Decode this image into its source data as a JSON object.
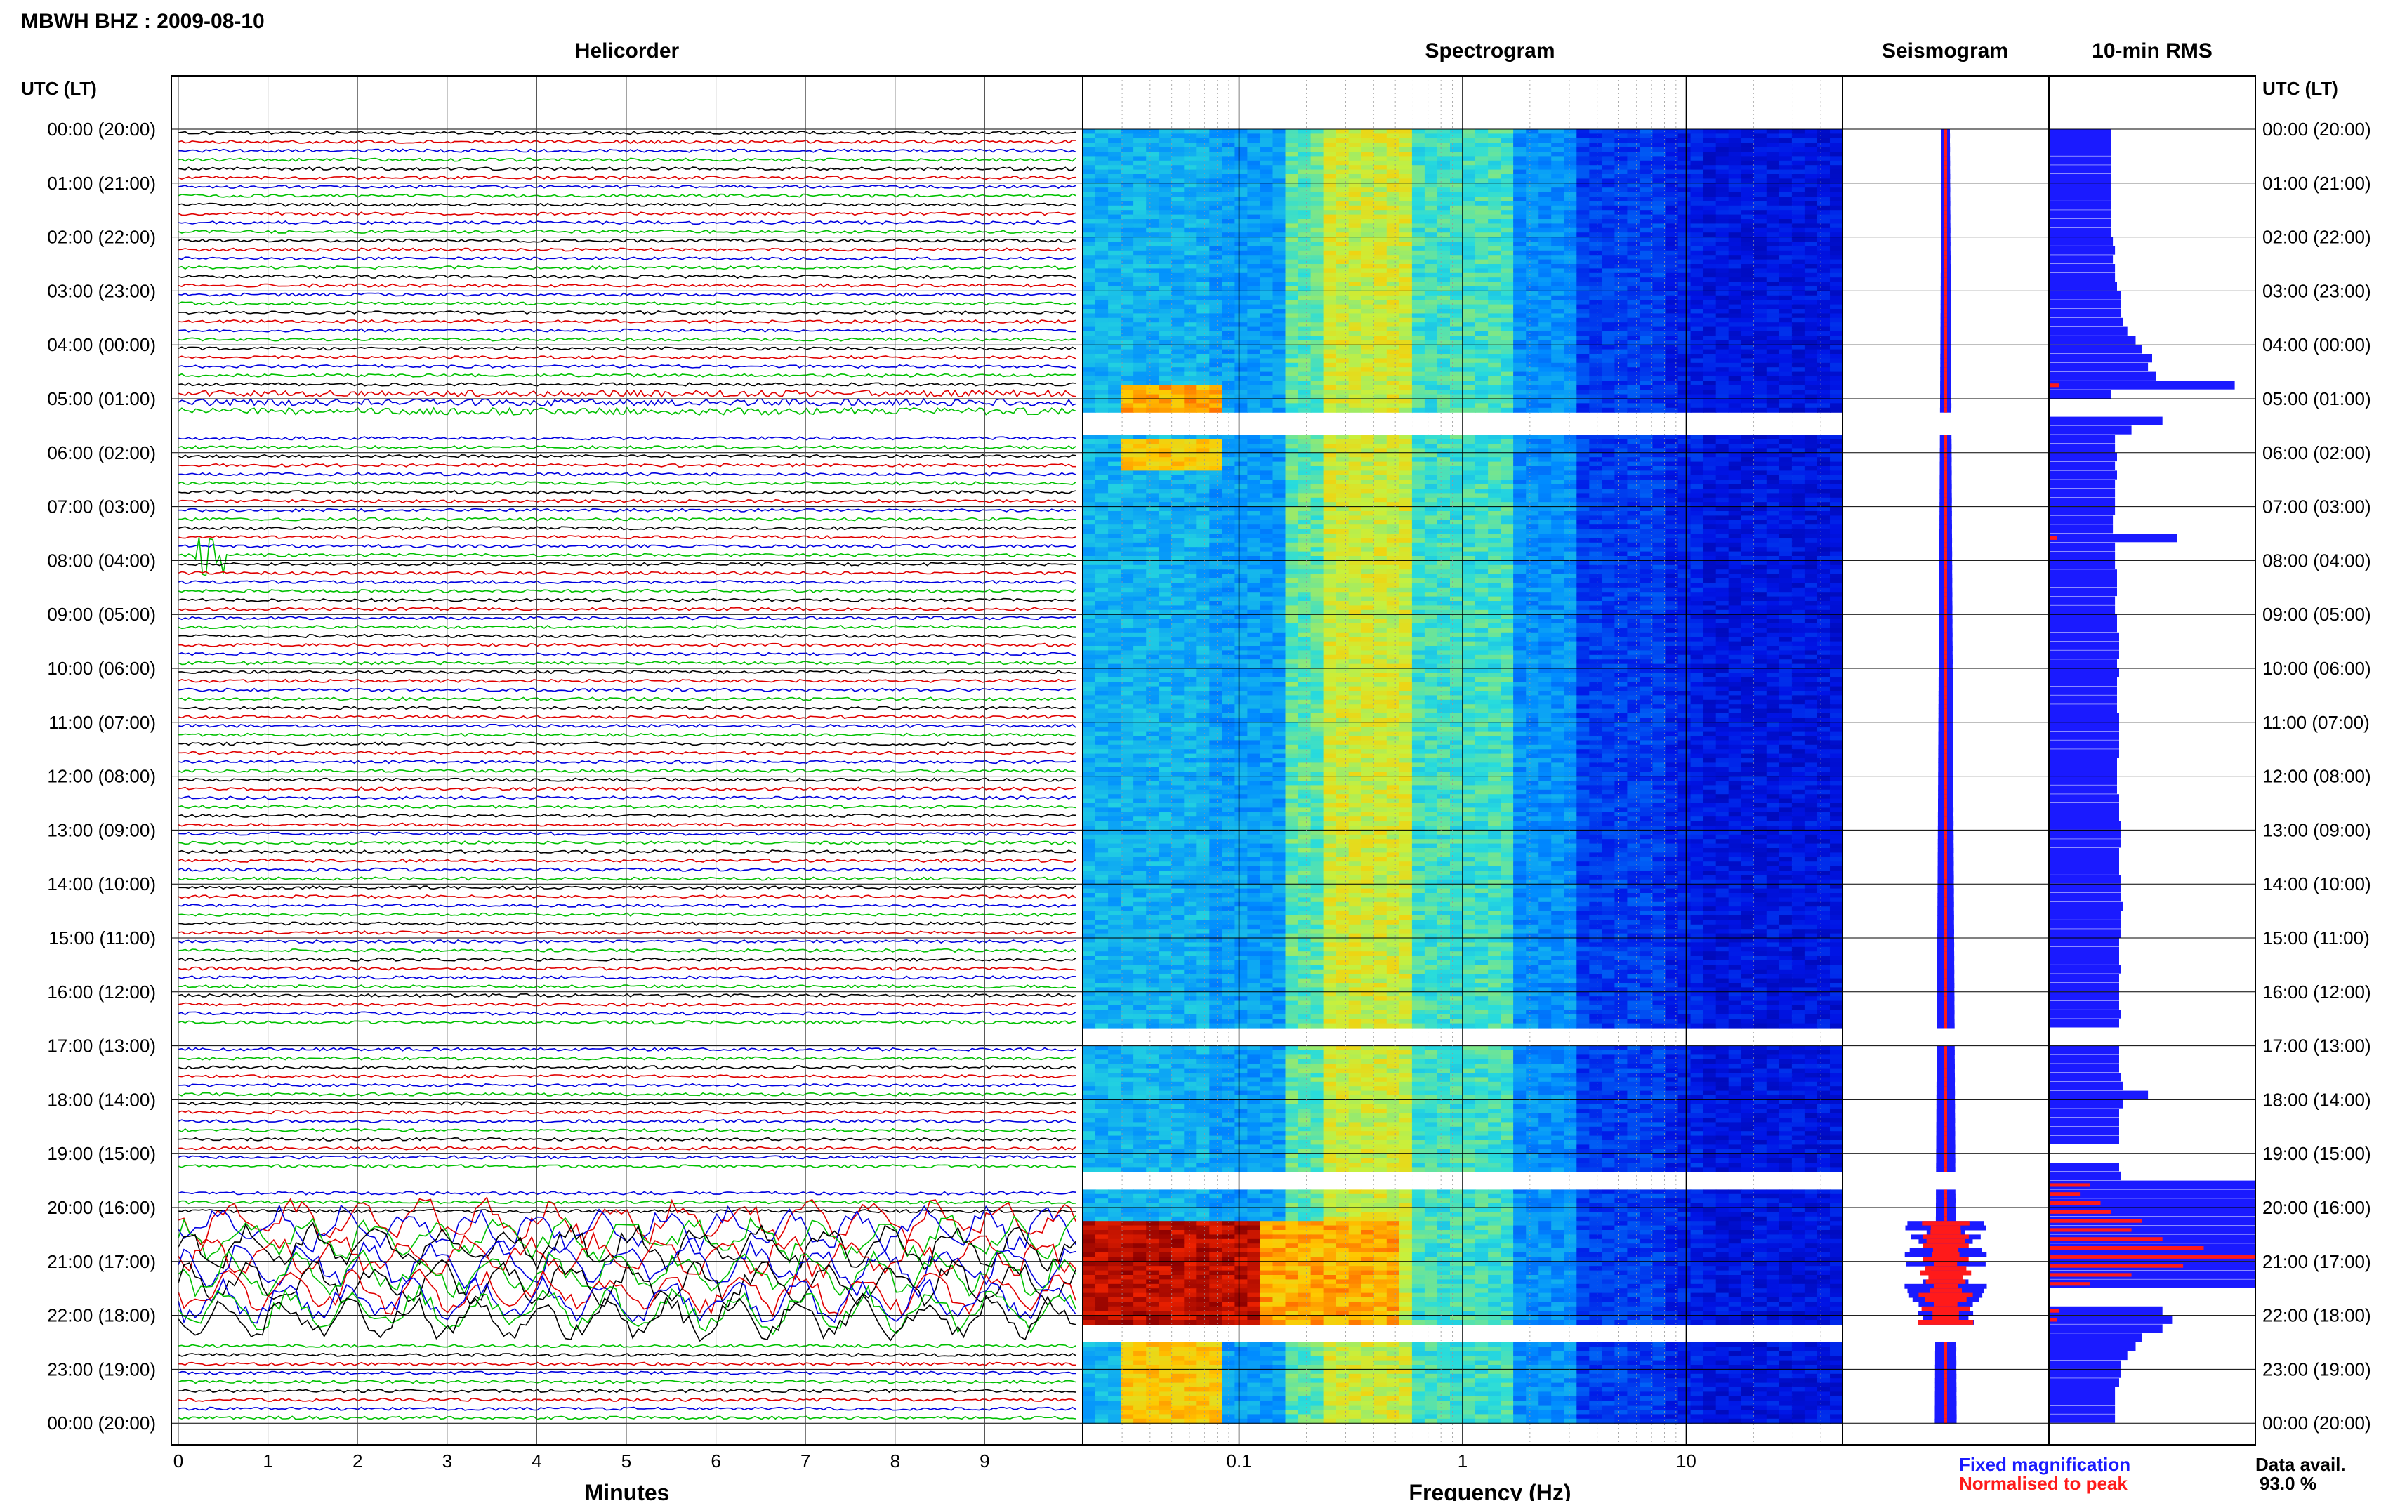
{
  "header": {
    "station_title": "MBWH BHZ : 2009-08-10",
    "left_axis_title": "UTC (LT)",
    "right_axis_title": "UTC (LT)"
  },
  "panels": {
    "helicorder_title": "Helicorder",
    "spectrogram_title": "Spectrogram",
    "seismogram_title": "Seismogram",
    "rms_title": "10-min RMS"
  },
  "axes": {
    "helicorder_xlabel": "Minutes",
    "spectrogram_xlabel": "Frequency (Hz)",
    "minute_ticks": [
      "0",
      "1",
      "2",
      "3",
      "4",
      "5",
      "6",
      "7",
      "8",
      "9"
    ],
    "freq_ticks": [
      "0.1",
      "1",
      "10"
    ]
  },
  "time_labels": [
    "00:00 (20:00)",
    "01:00 (21:00)",
    "02:00 (22:00)",
    "03:00 (23:00)",
    "04:00 (00:00)",
    "05:00 (01:00)",
    "06:00 (02:00)",
    "07:00 (03:00)",
    "08:00 (04:00)",
    "09:00 (05:00)",
    "10:00 (06:00)",
    "11:00 (07:00)",
    "12:00 (08:00)",
    "13:00 (09:00)",
    "14:00 (10:00)",
    "15:00 (11:00)",
    "16:00 (12:00)",
    "17:00 (13:00)",
    "18:00 (14:00)",
    "19:00 (15:00)",
    "20:00 (16:00)",
    "21:00 (17:00)",
    "22:00 (18:00)",
    "23:00 (19:00)",
    "00:00 (20:00)"
  ],
  "legend": {
    "fixed_label": "Fixed magnification",
    "fixed_color": "#1a1aff",
    "normalised_label": "Normalised to peak",
    "normalised_color": "#ff1a1a"
  },
  "availability": {
    "label": "Data avail.",
    "value": "93.0 %"
  },
  "colors": {
    "trace_cycle": [
      "#000000",
      "#e00000",
      "#0000e0",
      "#00c000"
    ],
    "rms_fixed": "#1a1aff",
    "rms_normalised": "#ff1a1a"
  },
  "chart_data": {
    "type": "heatmap",
    "title": "MBWH BHZ : 2009-08-10",
    "helicorder": {
      "xlabel": "Minutes",
      "xlim": [
        0,
        10
      ],
      "rows_per_hour": 6,
      "events": [
        {
          "utc": "07:50",
          "minute": 0.3,
          "note": "large transient"
        },
        {
          "utc": "17:50",
          "minute": 6.4,
          "note": "small transient"
        }
      ],
      "strong_activity_hours": [
        "20:00",
        "21:00",
        "22:00"
      ]
    },
    "spectrogram": {
      "xlabel": "Frequency (Hz)",
      "xscale": "log",
      "xlim": [
        0.02,
        50
      ],
      "gaps_utc": [
        [
          "05:15",
          "05:40"
        ],
        [
          "16:40",
          "17:00"
        ],
        [
          "19:20",
          "19:40"
        ],
        [
          "22:10",
          "22:30"
        ]
      ]
    },
    "rms_10min": {
      "series": [
        {
          "name": "Fixed magnification",
          "values": [
            0.3,
            0.3,
            0.3,
            0.3,
            0.3,
            0.3,
            0.3,
            0.3,
            0.3,
            0.3,
            0.3,
            0.3,
            0.31,
            0.32,
            0.31,
            0.32,
            0.32,
            0.33,
            0.35,
            0.35,
            0.35,
            0.36,
            0.38,
            0.42,
            0.45,
            0.5,
            0.48,
            0.52,
            0.9,
            0.3,
            null,
            null,
            0.55,
            0.4,
            0.32,
            0.32,
            0.33,
            0.32,
            0.33,
            0.32,
            0.32,
            0.32,
            0.32,
            0.31,
            0.31,
            0.62,
            0.32,
            0.32,
            0.32,
            0.33,
            0.33,
            0.33,
            0.32,
            0.32,
            0.33,
            0.33,
            0.34,
            0.34,
            0.34,
            0.33,
            0.34,
            0.33,
            0.33,
            0.33,
            0.33,
            0.34,
            0.34,
            0.34,
            0.34,
            0.34,
            0.33,
            0.33,
            0.33,
            0.33,
            0.34,
            0.34,
            0.34,
            0.35,
            0.35,
            0.35,
            0.34,
            0.34,
            0.34,
            0.35,
            0.35,
            0.35,
            0.36,
            0.35,
            0.35,
            0.35,
            0.34,
            0.34,
            0.34,
            0.35,
            0.34,
            0.34,
            0.34,
            0.34,
            0.35,
            0.34,
            null,
            null,
            0.34,
            0.34,
            0.34,
            0.35,
            0.36,
            0.48,
            0.36,
            0.34,
            0.34,
            0.34,
            0.34,
            null,
            null,
            0.34,
            0.35,
            1.0,
            1.0,
            1.0,
            1.0,
            1.0,
            1.0,
            1.0,
            1.0,
            1.0,
            1.0,
            1.0,
            1.0,
            null,
            null,
            0.55,
            0.6,
            0.55,
            0.45,
            0.42,
            0.38,
            0.35,
            0.35,
            0.34,
            0.32,
            0.32,
            0.32,
            0.32
          ]
        },
        {
          "name": "Normalised to peak",
          "values": [
            0.02,
            0.02,
            0.02,
            0.02,
            0.02,
            0.02,
            0.02,
            0.02,
            0.02,
            0.02,
            0.02,
            0.02,
            0.02,
            0.02,
            0.02,
            0.02,
            0.02,
            0.02,
            0.02,
            0.02,
            0.02,
            0.02,
            0.02,
            0.02,
            0.02,
            0.03,
            0.03,
            0.03,
            0.05,
            0.02,
            null,
            null,
            0.03,
            0.02,
            0.02,
            0.02,
            0.02,
            0.02,
            0.02,
            0.02,
            0.02,
            0.02,
            0.02,
            0.02,
            0.02,
            0.04,
            0.02,
            0.02,
            0.02,
            0.02,
            0.02,
            0.02,
            0.02,
            0.02,
            0.02,
            0.02,
            0.02,
            0.02,
            0.02,
            0.02,
            0.02,
            0.02,
            0.02,
            0.02,
            0.02,
            0.02,
            0.02,
            0.02,
            0.02,
            0.02,
            0.02,
            0.02,
            0.02,
            0.02,
            0.02,
            0.02,
            0.02,
            0.02,
            0.02,
            0.02,
            0.02,
            0.02,
            0.02,
            0.02,
            0.02,
            0.02,
            0.02,
            0.02,
            0.02,
            0.02,
            0.02,
            0.02,
            0.02,
            0.02,
            0.02,
            0.02,
            0.02,
            0.02,
            0.02,
            0.02,
            null,
            null,
            0.02,
            0.02,
            0.02,
            0.02,
            0.02,
            0.03,
            0.02,
            0.02,
            0.02,
            0.02,
            0.02,
            null,
            null,
            0.02,
            0.02,
            0.2,
            0.15,
            0.25,
            0.3,
            0.45,
            0.4,
            0.55,
            0.75,
            1.0,
            0.65,
            0.4,
            0.2,
            null,
            null,
            0.05,
            0.04,
            0.03,
            0.03,
            0.02,
            0.02,
            0.02,
            0.02,
            0.02,
            0.02,
            0.02,
            0.02,
            0.02
          ]
        }
      ]
    }
  }
}
